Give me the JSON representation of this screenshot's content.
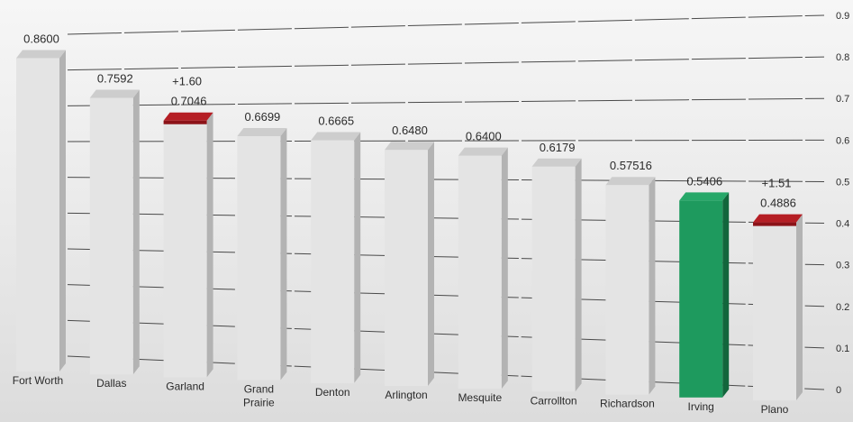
{
  "chart_data": {
    "type": "bar",
    "title": "",
    "xlabel": "",
    "ylabel": "",
    "ylim": [
      0,
      0.9
    ],
    "yticks": [
      0,
      0.1,
      0.2,
      0.3,
      0.4,
      0.5,
      0.6,
      0.7,
      0.8,
      0.9
    ],
    "ytick_labels": [
      "0",
      "0.1",
      "0.2",
      "0.3",
      "0.4",
      "0.5",
      "0.6",
      "0.7",
      "0.8",
      "0.9"
    ],
    "grid": true,
    "categories": [
      [
        "Fort Worth"
      ],
      [
        "Dallas"
      ],
      [
        "Garland"
      ],
      [
        "Grand",
        "Prairie"
      ],
      [
        "Denton"
      ],
      [
        "Arlington"
      ],
      [
        "Mesquite"
      ],
      [
        "Carrollton"
      ],
      [
        "Richardson"
      ],
      [
        "Irving"
      ],
      [
        "Plano"
      ]
    ],
    "values": [
      0.86,
      0.7592,
      0.7046,
      0.6699,
      0.6665,
      0.648,
      0.64,
      0.6179,
      0.57516,
      0.5406,
      0.4886
    ],
    "value_labels": [
      "0.8600",
      "0.7592",
      "0.7046",
      "0.6699",
      "0.6665",
      "0.6480",
      "0.6400",
      "0.6179",
      "0.57516",
      "0.5406",
      "0.4886"
    ],
    "annotations": [
      {
        "category": "Garland",
        "text": "+1.60"
      },
      {
        "category": "Plano",
        "text": "+1.51"
      }
    ],
    "colors": {
      "bar_face": "#e4e4e4",
      "bar_side": "#b3b3b3",
      "bar_top": "#cdcdcd",
      "highlight_bar": "#1e9a5e",
      "highlight_top_red": "#b51e24",
      "grid": "#4a4a4a",
      "text": "#2a2a2a"
    },
    "highlight_full": [
      "Irving"
    ],
    "highlight_top": [
      "Garland",
      "Plano"
    ]
  }
}
